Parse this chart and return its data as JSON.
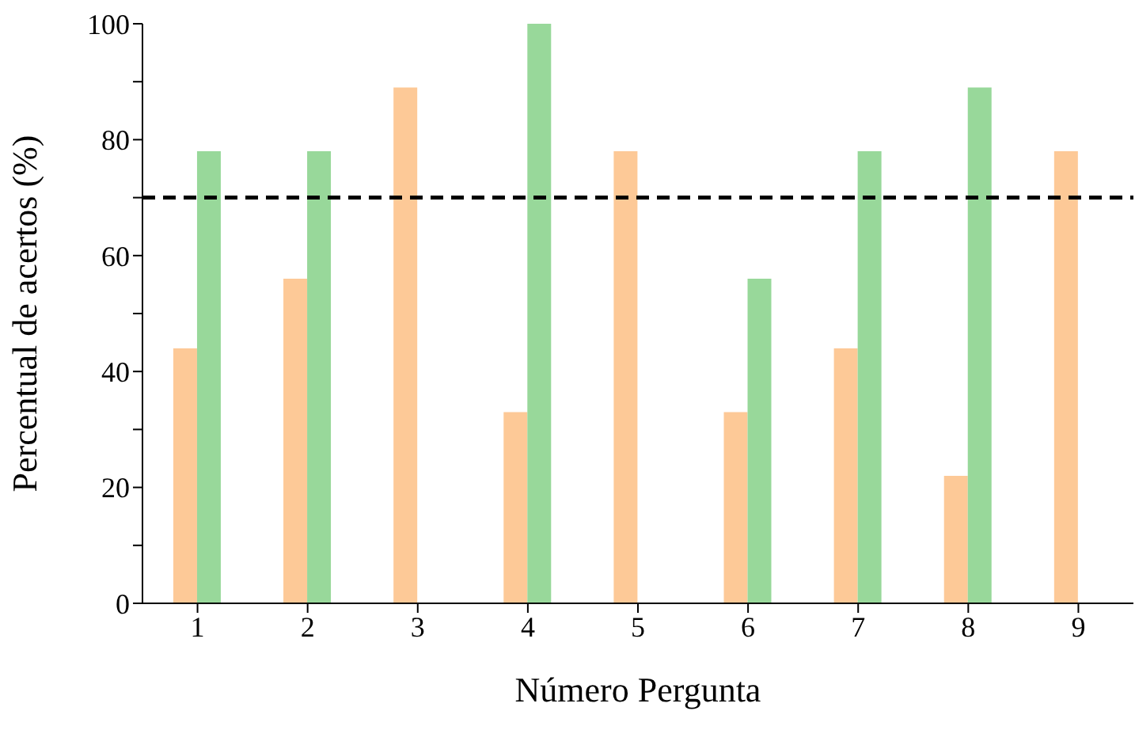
{
  "chart_data": {
    "type": "bar",
    "xlabel": "Número Pergunta",
    "ylabel": "Percentual de acertos (%)",
    "categories": [
      "1",
      "2",
      "3",
      "4",
      "5",
      "6",
      "7",
      "8",
      "9"
    ],
    "series": [
      {
        "color": "#fdc997",
        "values": [
          44,
          56,
          89,
          33,
          78,
          33,
          44,
          22,
          78
        ]
      },
      {
        "color": "#98d89a",
        "values": [
          78,
          78,
          null,
          100,
          null,
          56,
          78,
          89,
          null
        ]
      }
    ],
    "ylim": [
      0,
      100
    ],
    "yticks": [
      0,
      {
        "value": 10,
        "label": null
      },
      20,
      {
        "value": 30,
        "label": null
      },
      40,
      {
        "value": 50,
        "label": null
      },
      60,
      {
        "value": 70,
        "label": null
      },
      80,
      {
        "value": 90,
        "label": null
      },
      100
    ],
    "ref_lines": [
      {
        "axis": "y",
        "value": 70,
        "color": "#000000",
        "line_style": "dashed"
      }
    ],
    "grid": false,
    "legend": false
  }
}
